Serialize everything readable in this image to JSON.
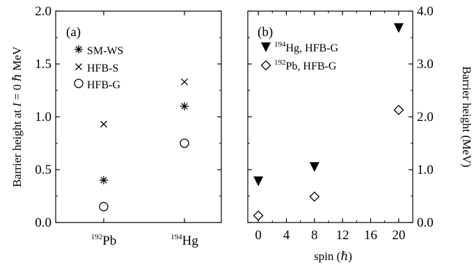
{
  "chart_data": [
    {
      "type": "scatter",
      "panel_label": "(a)",
      "ylabel": "Barrier height at I = 0 ℏ MeV",
      "ylabel_parts": {
        "pre": "Barrier height at ",
        "ivar": "I",
        "mid": " = 0 ",
        "hbar": "ℏ",
        "post": " MeV"
      },
      "ylim": [
        0.0,
        2.0
      ],
      "yticks": [
        "0.0",
        "0.5",
        "1.0",
        "1.5",
        "2.0"
      ],
      "categories": [
        {
          "sup": "192",
          "base": "Pb"
        },
        {
          "sup": "194",
          "base": "Hg"
        }
      ],
      "legend_position": "top-left",
      "series": [
        {
          "name": "SM-WS",
          "marker": "asterisk",
          "values": [
            0.4,
            1.1
          ]
        },
        {
          "name": "HFB-S",
          "marker": "cross",
          "values": [
            0.93,
            1.33
          ]
        },
        {
          "name": "HFB-G",
          "marker": "circle",
          "values": [
            0.15,
            0.75
          ]
        }
      ]
    },
    {
      "type": "scatter",
      "panel_label": "(b)",
      "xlabel": "spin (ℏ)",
      "xlabel_parts": {
        "pre": "spin (",
        "hbar": "ℏ",
        "post": ")"
      },
      "ylabel": "Barrier height (MeV)",
      "xlim": [
        -1.5,
        22
      ],
      "ylim": [
        0.0,
        4.0
      ],
      "xticks": [
        "0",
        "4",
        "8",
        "12",
        "16",
        "20"
      ],
      "yticks": [
        "0.0",
        "1.0",
        "2.0",
        "3.0",
        "4.0"
      ],
      "legend_position": "top-left",
      "series": [
        {
          "name": "Hg, HFB-G",
          "name_sup": "194",
          "marker": "filled-triangle-down",
          "x": [
            0,
            8,
            20
          ],
          "y": [
            0.78,
            1.05,
            3.68
          ]
        },
        {
          "name": "Pb, HFB-G",
          "name_sup": "192",
          "marker": "open-diamond",
          "x": [
            0,
            8,
            20
          ],
          "y": [
            0.13,
            0.49,
            2.13
          ]
        }
      ]
    }
  ]
}
